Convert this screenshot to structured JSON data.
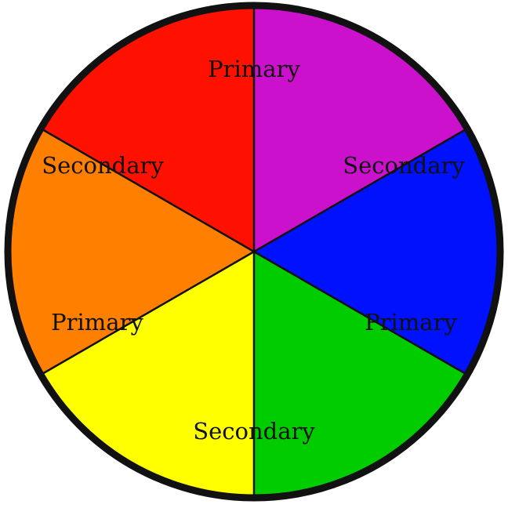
{
  "diagram": {
    "type": "color-wheel",
    "segments": [
      {
        "label": "Primary",
        "color": "#fe1100"
      },
      {
        "label": "Secondary",
        "color": "#cc11cc"
      },
      {
        "label": "Primary",
        "color": "#0011fe"
      },
      {
        "label": "Secondary",
        "color": "#00cc00"
      },
      {
        "label": "Primary",
        "color": "#ffff00"
      },
      {
        "label": "Secondary",
        "color": "#ff7f00"
      }
    ],
    "outline_color": "#111111"
  }
}
